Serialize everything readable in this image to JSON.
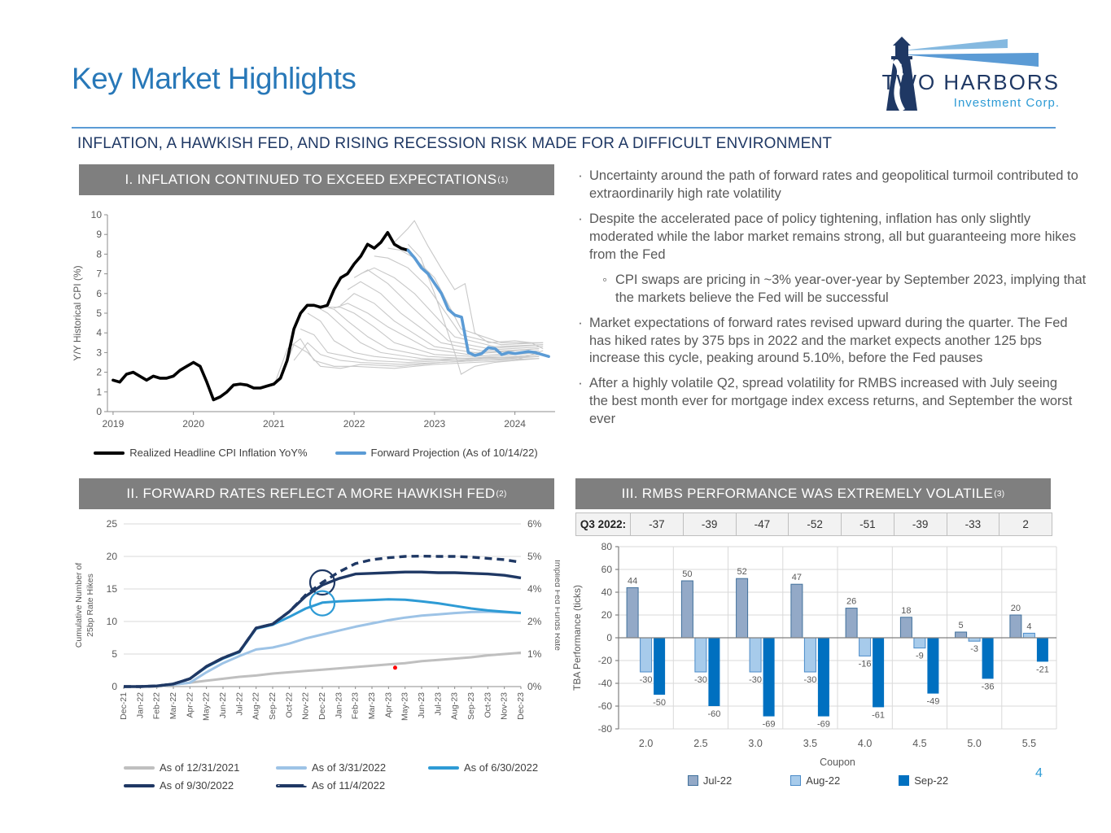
{
  "page_number": "4",
  "header": {
    "title": "Key Market Highlights",
    "subtitle": "INFLATION, A HAWKISH FED, AND RISING RECESSION RISK MADE FOR A DIFFICULT ENVIRONMENT",
    "logo": {
      "company": "TWO HARBORS",
      "tagline": "Investment Corp."
    }
  },
  "panels": {
    "panel1": {
      "title": "I.  INFLATION CONTINUED TO EXCEED EXPECTATIONS",
      "footnote_sup": "(1)"
    },
    "panel2": {
      "title": "II. FORWARD RATES REFLECT A MORE HAWKISH FED",
      "footnote_sup": "(2)"
    },
    "panel3": {
      "title": "III. RMBS PERFORMANCE WAS EXTREMELY VOLATILE",
      "footnote_sup": "(3)"
    }
  },
  "bullets": [
    {
      "level": 1,
      "text": "Uncertainty around the path of forward rates and geopolitical turmoil contributed to extraordinarily high rate volatility"
    },
    {
      "level": 1,
      "text": "Despite the accelerated pace of policy tightening, inflation has only slightly moderated while the labor market remains strong, all but guaranteeing more hikes from the Fed"
    },
    {
      "level": 2,
      "text": "CPI swaps are pricing in ~3% year-over-year by September 2023, implying that the markets believe the Fed will be successful"
    },
    {
      "level": 1,
      "text": "Market expectations of forward rates revised upward during the quarter. The Fed has hiked rates by 375 bps in 2022 and the market expects another 125 bps increase this cycle, peaking around 5.10%, before the Fed pauses"
    },
    {
      "level": 1,
      "text": "After a highly volatile Q2, spread volatility for RMBS increased with July seeing the best month ever for mortgage index excess returns, and September the worst ever"
    }
  ],
  "chart_data": [
    {
      "id": "cpi",
      "type": "line",
      "ylabel": "Y/Y Historical CPI (%)",
      "ylim": [
        0,
        10
      ],
      "yticks": [
        0,
        1,
        2,
        3,
        4,
        5,
        6,
        7,
        8,
        9,
        10
      ],
      "xlim": [
        2018.93,
        2024.5
      ],
      "xticks": [
        2019,
        2020,
        2021,
        2022,
        2023,
        2024
      ],
      "fan_color": "#C8C8C8",
      "series": [
        {
          "name": "Realized Headline CPI Inflation YoY%",
          "color": "#000000",
          "width": 3.6,
          "x0": 2019.0,
          "dx": 0.08333,
          "values": [
            1.6,
            1.5,
            1.9,
            2.0,
            1.8,
            1.6,
            1.8,
            1.7,
            1.7,
            1.8,
            2.1,
            2.3,
            2.5,
            2.3,
            1.5,
            0.6,
            0.75,
            1.0,
            1.35,
            1.4,
            1.35,
            1.2,
            1.2,
            1.3,
            1.4,
            1.7,
            2.6,
            4.2,
            5.0,
            5.4,
            5.4,
            5.3,
            5.4,
            6.2,
            6.8,
            7.0,
            7.5,
            7.9,
            8.5,
            8.3,
            8.6,
            9.1,
            8.5,
            8.3,
            8.2
          ]
        },
        {
          "name": "Forward Projection (As of 10/14/22)",
          "color": "#5B9BD5",
          "width": 3.6,
          "x0": 2022.67,
          "dx": 0.08333,
          "values": [
            8.2,
            7.8,
            7.3,
            7.0,
            6.5,
            6.0,
            5.2,
            4.9,
            4.8,
            3.0,
            2.85,
            2.95,
            3.25,
            3.2,
            2.9,
            3.0,
            2.95,
            3.0,
            3.05,
            3.0,
            2.9,
            2.8
          ]
        }
      ],
      "projection_fan": [
        [
          [
            2021.0,
            1.3
          ],
          [
            2021.17,
            3.2
          ],
          [
            2021.33,
            3.7
          ],
          [
            2021.5,
            2.6
          ],
          [
            2021.75,
            2.3
          ],
          [
            2022.0,
            2.3
          ],
          [
            2022.5,
            2.2
          ],
          [
            2023.0,
            2.4
          ],
          [
            2023.5,
            2.5
          ],
          [
            2024.0,
            2.6
          ],
          [
            2024.3,
            2.7
          ]
        ],
        [
          [
            2021.08,
            1.6
          ],
          [
            2021.25,
            3.4
          ],
          [
            2021.42,
            3.0
          ],
          [
            2021.58,
            2.3
          ],
          [
            2021.83,
            2.2
          ],
          [
            2022.08,
            2.4
          ],
          [
            2022.58,
            2.3
          ],
          [
            2023.08,
            2.5
          ],
          [
            2023.58,
            2.6
          ],
          [
            2024.3,
            2.7
          ]
        ],
        [
          [
            2021.25,
            2.6
          ],
          [
            2021.42,
            3.5
          ],
          [
            2021.58,
            2.9
          ],
          [
            2021.83,
            2.6
          ],
          [
            2022.08,
            2.5
          ],
          [
            2022.58,
            2.4
          ],
          [
            2023.08,
            2.5
          ],
          [
            2023.58,
            2.6
          ],
          [
            2024.3,
            2.8
          ]
        ],
        [
          [
            2021.33,
            4.2
          ],
          [
            2021.5,
            3.9
          ],
          [
            2021.67,
            3.0
          ],
          [
            2021.92,
            2.8
          ],
          [
            2022.17,
            2.6
          ],
          [
            2022.67,
            2.5
          ],
          [
            2023.17,
            2.6
          ],
          [
            2023.67,
            2.7
          ],
          [
            2024.3,
            2.8
          ]
        ],
        [
          [
            2021.42,
            5.0
          ],
          [
            2021.58,
            4.6
          ],
          [
            2021.75,
            3.6
          ],
          [
            2022.0,
            3.0
          ],
          [
            2022.25,
            2.8
          ],
          [
            2022.75,
            2.6
          ],
          [
            2023.25,
            2.7
          ],
          [
            2024.3,
            2.8
          ]
        ],
        [
          [
            2021.5,
            5.4
          ],
          [
            2021.67,
            5.0
          ],
          [
            2021.83,
            4.4
          ],
          [
            2022.08,
            3.5
          ],
          [
            2022.33,
            3.0
          ],
          [
            2022.83,
            2.7
          ],
          [
            2023.33,
            2.6
          ],
          [
            2024.3,
            2.9
          ]
        ],
        [
          [
            2021.58,
            5.4
          ],
          [
            2021.75,
            5.2
          ],
          [
            2021.92,
            4.6
          ],
          [
            2022.17,
            3.8
          ],
          [
            2022.42,
            3.2
          ],
          [
            2022.92,
            2.8
          ],
          [
            2023.42,
            2.7
          ],
          [
            2024.3,
            3.0
          ]
        ],
        [
          [
            2021.67,
            5.3
          ],
          [
            2021.83,
            5.3
          ],
          [
            2022.0,
            5.0
          ],
          [
            2022.25,
            4.3
          ],
          [
            2022.5,
            3.5
          ],
          [
            2023.0,
            2.9
          ],
          [
            2023.5,
            2.8
          ],
          [
            2024.3,
            3.1
          ]
        ],
        [
          [
            2021.75,
            5.25
          ],
          [
            2021.92,
            5.5
          ],
          [
            2022.17,
            5.0
          ],
          [
            2022.42,
            4.3
          ],
          [
            2022.92,
            3.2
          ],
          [
            2023.42,
            2.9
          ],
          [
            2024.3,
            3.2
          ]
        ],
        [
          [
            2021.83,
            5.4
          ],
          [
            2022.0,
            6.0
          ],
          [
            2022.25,
            5.5
          ],
          [
            2022.5,
            4.6
          ],
          [
            2023.0,
            3.3
          ],
          [
            2023.5,
            3.0
          ],
          [
            2024.3,
            3.2
          ]
        ],
        [
          [
            2021.92,
            6.2
          ],
          [
            2022.08,
            6.6
          ],
          [
            2022.33,
            6.0
          ],
          [
            2022.58,
            5.0
          ],
          [
            2023.08,
            3.5
          ],
          [
            2023.58,
            3.1
          ],
          [
            2024.35,
            3.3
          ]
        ],
        [
          [
            2022.0,
            6.8
          ],
          [
            2022.17,
            7.2
          ],
          [
            2022.42,
            6.5
          ],
          [
            2022.67,
            5.5
          ],
          [
            2023.17,
            3.6
          ],
          [
            2023.67,
            3.2
          ],
          [
            2024.35,
            3.4
          ]
        ],
        [
          [
            2022.08,
            7.0
          ],
          [
            2022.25,
            7.3
          ],
          [
            2022.5,
            6.8
          ],
          [
            2022.75,
            6.0
          ],
          [
            2023.25,
            3.8
          ],
          [
            2023.75,
            3.3
          ],
          [
            2024.35,
            3.4
          ]
        ],
        [
          [
            2022.25,
            7.9
          ],
          [
            2022.42,
            7.8
          ],
          [
            2022.67,
            7.3
          ],
          [
            2022.92,
            6.3
          ],
          [
            2023.33,
            3.9
          ],
          [
            2023.83,
            3.4
          ],
          [
            2024.35,
            3.5
          ]
        ],
        [
          [
            2022.42,
            8.3
          ],
          [
            2022.58,
            8.2
          ],
          [
            2022.75,
            7.8
          ],
          [
            2023.0,
            6.8
          ],
          [
            2023.33,
            4.2
          ],
          [
            2023.83,
            3.5
          ],
          [
            2024.35,
            3.5
          ]
        ],
        [
          [
            2022.5,
            8.6
          ],
          [
            2022.67,
            9.3
          ],
          [
            2022.75,
            9.7
          ],
          [
            2022.92,
            8.4
          ],
          [
            2023.08,
            7.3
          ],
          [
            2023.25,
            6.2
          ],
          [
            2023.38,
            6.5
          ],
          [
            2023.5,
            4.0
          ],
          [
            2023.67,
            3.5
          ],
          [
            2024.0,
            3.6
          ],
          [
            2024.2,
            3.5
          ],
          [
            2024.35,
            3.2
          ]
        ],
        [
          [
            2022.67,
            8.5
          ],
          [
            2022.83,
            7.8
          ],
          [
            2023.0,
            6.0
          ],
          [
            2023.25,
            3.0
          ],
          [
            2023.33,
            1.9
          ],
          [
            2023.5,
            2.3
          ],
          [
            2023.75,
            2.5
          ],
          [
            2024.0,
            2.6
          ],
          [
            2024.35,
            3.1
          ]
        ]
      ]
    },
    {
      "id": "hikes",
      "type": "line",
      "ylabel_left_line1": "Cumulative Number of",
      "ylabel_left_line2": "25bp Rate Hikes",
      "ylabel_right": "Implied Fed Funds Rate",
      "ylim": [
        0,
        25
      ],
      "yticks": [
        0,
        5,
        10,
        15,
        20,
        25
      ],
      "yticks_right_labels": [
        "0%",
        "1%",
        "2%",
        "4%",
        "5%",
        "6%"
      ],
      "categories": [
        "Dec-21",
        "Jan-22",
        "Feb-22",
        "Mar-22",
        "Apr-22",
        "May-22",
        "Jun-22",
        "Jul-22",
        "Aug-22",
        "Sep-22",
        "Oct-22",
        "Nov-22",
        "Dec-22",
        "Jan-23",
        "Feb-23",
        "Mar-23",
        "Apr-23",
        "May-23",
        "Jun-23",
        "Jul-23",
        "Aug-23",
        "Sep-23",
        "Oct-23",
        "Nov-23",
        "Dec-23"
      ],
      "series": [
        {
          "name": "As of 12/31/2021",
          "color": "#BFBFBF",
          "width": 3,
          "dash": false,
          "values": [
            0,
            0,
            0,
            0.3,
            0.6,
            0.9,
            1.2,
            1.5,
            1.7,
            2.0,
            2.2,
            2.4,
            2.6,
            2.8,
            3.0,
            3.2,
            3.4,
            3.6,
            3.9,
            4.1,
            4.3,
            4.5,
            4.8,
            5.0,
            5.2
          ]
        },
        {
          "name": "As of 3/31/2022",
          "color": "#9DC3E6",
          "width": 3,
          "dash": false,
          "values": [
            0,
            0,
            0.1,
            0.3,
            0.6,
            2.2,
            3.6,
            4.7,
            5.7,
            6.0,
            6.6,
            7.4,
            8.0,
            8.6,
            9.2,
            9.7,
            10.2,
            10.6,
            10.9,
            11.1,
            11.3,
            11.45,
            11.5,
            11.4,
            11.3
          ]
        },
        {
          "name": "As of 6/30/2022",
          "color": "#2E9BD5",
          "width": 3,
          "dash": false,
          "values": [
            0,
            0,
            0.1,
            0.4,
            1.2,
            3.0,
            4.3,
            5.3,
            8.9,
            9.5,
            10.7,
            12.0,
            12.9,
            13.1,
            13.2,
            13.3,
            13.4,
            13.35,
            13.1,
            12.8,
            12.4,
            12.0,
            11.7,
            11.5,
            11.3
          ]
        },
        {
          "name": "As of 9/30/2022",
          "color": "#1F3864",
          "width": 3.4,
          "dash": false,
          "values": [
            0,
            0,
            0.1,
            0.4,
            1.2,
            3.1,
            4.4,
            5.4,
            9.0,
            9.6,
            11.5,
            13.9,
            15.6,
            16.6,
            17.3,
            17.4,
            17.5,
            17.6,
            17.6,
            17.5,
            17.5,
            17.4,
            17.3,
            17.1,
            16.7
          ]
        },
        {
          "name": "As of 11/4/2022",
          "color": "#1F3864",
          "width": 3.4,
          "dash": true,
          "values": [
            0,
            0,
            0.1,
            0.4,
            1.2,
            3.1,
            4.4,
            5.4,
            9.0,
            9.6,
            11.5,
            14.1,
            16.0,
            17.6,
            18.9,
            19.5,
            19.8,
            20.0,
            20.05,
            20.0,
            20.0,
            19.9,
            19.7,
            19.5,
            19.1
          ]
        }
      ],
      "annotations": [
        {
          "kind": "circle",
          "index": 12,
          "value": 16.0,
          "r": 15,
          "color": "#1F3864"
        },
        {
          "kind": "circle",
          "index": 12,
          "value": 12.8,
          "r": 15,
          "color": "#2E9BD5"
        },
        {
          "kind": "dot",
          "index": 16.4,
          "value": 2.9,
          "r": 2.5,
          "color": "#FF0000"
        }
      ]
    },
    {
      "id": "rmbs",
      "type": "bar",
      "ylabel": "TBA Performance (ticks)",
      "xlabel": "Coupon",
      "ylim": [
        -80,
        80
      ],
      "yticks": [
        -80,
        -60,
        -40,
        -20,
        0,
        20,
        40,
        60,
        80
      ],
      "categories": [
        "2.0",
        "2.5",
        "3.0",
        "3.5",
        "4.0",
        "4.5",
        "5.0",
        "5.5"
      ],
      "series": [
        {
          "name": "Jul-22",
          "fill": "#93A9C7",
          "stroke": "#41719C",
          "values": [
            44,
            50,
            52,
            47,
            26,
            18,
            5,
            20
          ]
        },
        {
          "name": "Aug-22",
          "fill": "#A7CBEB",
          "stroke": "#4B8BC8",
          "values": [
            -30,
            -30,
            -30,
            -30,
            -16,
            -9,
            -3,
            4
          ]
        },
        {
          "name": "Sep-22",
          "fill": "#0070C0",
          "stroke": "#0070C0",
          "values": [
            -50,
            -60,
            -69,
            -69,
            -61,
            -49,
            -36,
            -21
          ]
        }
      ],
      "summary_row": {
        "label": "Q3 2022:",
        "values": [
          "-37",
          "-39",
          "-47",
          "-52",
          "-51",
          "-39",
          "-33",
          "2"
        ]
      }
    }
  ]
}
